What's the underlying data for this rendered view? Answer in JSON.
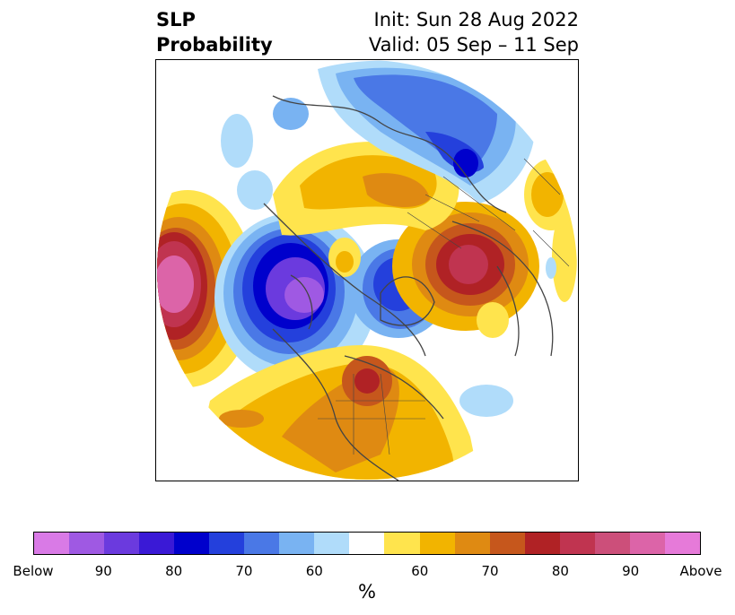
{
  "title": {
    "left_line1": "SLP",
    "left_line2": "Probability",
    "right_line1": "Init: Sun 28 Aug 2022",
    "right_line2": "Valid: 05 Sep – 11 Sep"
  },
  "colorbar": {
    "colors": [
      "#d97ae6",
      "#9f59e3",
      "#6b3ade",
      "#3a19d6",
      "#0000cc",
      "#2440dc",
      "#4a78e6",
      "#79b3f2",
      "#b0dcfa",
      "#ffffff",
      "#ffe44d",
      "#f2b400",
      "#df8a12",
      "#c6571c",
      "#b02225",
      "#c03450",
      "#cc4f7a",
      "#dc64a8",
      "#e67ad9"
    ],
    "tick_labels": [
      "Below",
      "90",
      "80",
      "70",
      "60",
      "60",
      "70",
      "80",
      "90",
      "Above"
    ],
    "unit": "%"
  }
}
